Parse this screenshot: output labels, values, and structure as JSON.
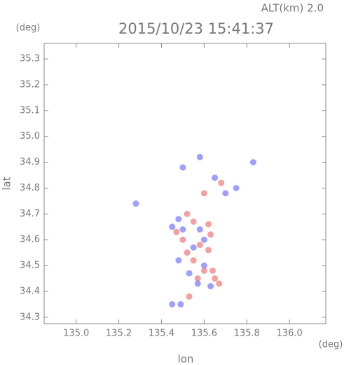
{
  "chart_data": {
    "type": "scatter",
    "title": "2015/10/23 15:41:37",
    "subtitle": "ALT(km) 2.0",
    "x_label": "lon",
    "y_label": "lat",
    "x_unit": "(deg)",
    "y_unit": "(deg)",
    "xlim": [
      134.85,
      136.17
    ],
    "ylim": [
      34.275,
      35.36
    ],
    "xticks": [
      {
        "value": 135.0,
        "label": "135.0"
      },
      135.2,
      135.4,
      135.6,
      135.8,
      {
        "value": 136.0,
        "label": "136.0"
      }
    ],
    "yticks": [
      34.3,
      34.4,
      34.5,
      34.6,
      34.7,
      34.8,
      34.9,
      {
        "value": 35.0,
        "label": "35.0"
      },
      35.1,
      35.2,
      35.3
    ],
    "series": [
      {
        "color": "#f08080",
        "x": [
          135.55,
          135.62,
          135.5,
          135.58,
          135.63,
          135.55,
          135.6,
          135.65,
          135.67,
          135.53,
          135.68,
          135.6,
          135.52,
          135.47,
          135.57,
          135.64,
          135.62,
          135.52
        ],
        "values": [
          34.67,
          34.66,
          34.6,
          34.58,
          34.62,
          34.52,
          34.48,
          34.45,
          34.43,
          34.38,
          34.82,
          34.78,
          34.7,
          34.63,
          34.45,
          34.48,
          34.56,
          34.55
        ]
      },
      {
        "color": "#7f7fff",
        "x": [
          135.48,
          135.45,
          135.58,
          135.55,
          135.5,
          135.6,
          135.57,
          135.63,
          135.49,
          135.45,
          135.53,
          135.65,
          135.7,
          135.5,
          135.58,
          135.83,
          135.75,
          135.6,
          135.28,
          135.48
        ],
        "values": [
          34.68,
          34.65,
          34.64,
          34.57,
          34.64,
          34.5,
          34.43,
          34.42,
          34.35,
          34.35,
          34.47,
          34.84,
          34.78,
          34.88,
          34.92,
          34.9,
          34.8,
          34.6,
          34.74,
          34.52
        ]
      }
    ]
  }
}
